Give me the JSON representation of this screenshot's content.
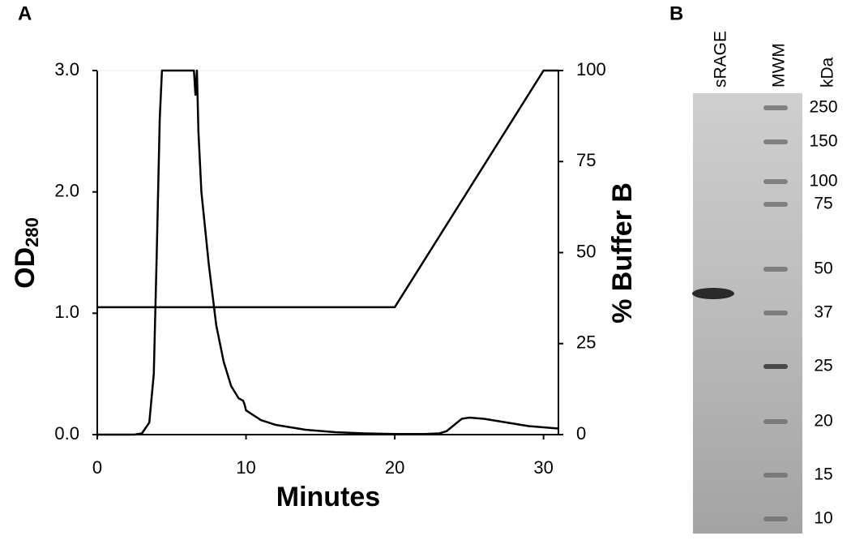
{
  "panel_labels": [
    "A",
    "B"
  ],
  "chart_data": {
    "type": "line",
    "xlabel": "Minutes",
    "ylabel": "OD",
    "ylabel_subscript": "280",
    "y2label": "% Buffer B",
    "xlim": [
      0,
      31
    ],
    "xticks": [
      0,
      10,
      20,
      30
    ],
    "ylim": [
      0,
      3
    ],
    "yticks": [
      {
        "value": 0,
        "label": "0.0"
      },
      {
        "value": 1,
        "label": "1.0"
      },
      {
        "value": 2,
        "label": "2.0"
      },
      {
        "value": 3,
        "label": "3.0"
      }
    ],
    "y2lim": [
      0,
      100
    ],
    "y2ticks": [
      0,
      25,
      50,
      75,
      100
    ],
    "grid": false,
    "series": [
      {
        "color": "#000000",
        "axis": "y",
        "x": [
          0,
          2.5,
          3,
          3.5,
          3.8,
          4,
          4.2,
          4.35,
          6.5,
          6.6,
          6.7,
          6.8,
          7,
          7.5,
          8,
          8.5,
          9,
          9.5,
          9.8,
          9.9,
          10,
          11,
          12,
          13,
          14,
          15,
          16,
          18,
          20,
          22,
          23,
          23.5,
          24,
          24.5,
          25,
          26,
          27,
          28,
          29,
          30,
          31
        ],
        "values": [
          0,
          0,
          0.01,
          0.1,
          0.5,
          1.5,
          2.6,
          3,
          3,
          2.8,
          3,
          2.5,
          2,
          1.4,
          0.9,
          0.6,
          0.4,
          0.3,
          0.28,
          0.25,
          0.2,
          0.12,
          0.08,
          0.06,
          0.04,
          0.03,
          0.02,
          0.01,
          0.005,
          0.005,
          0.01,
          0.03,
          0.08,
          0.13,
          0.14,
          0.13,
          0.11,
          0.09,
          0.07,
          0.06,
          0.05
        ]
      },
      {
        "color": "#000000",
        "axis": "y2",
        "x": [
          0,
          20,
          30,
          31
        ],
        "values": [
          35,
          35,
          100,
          100
        ]
      }
    ]
  },
  "gel": {
    "lanes": [
      "sRAGE",
      "MWM"
    ],
    "unit": "kDa",
    "markers": [
      250,
      150,
      100,
      75,
      50,
      37,
      25,
      20,
      15,
      10
    ]
  }
}
